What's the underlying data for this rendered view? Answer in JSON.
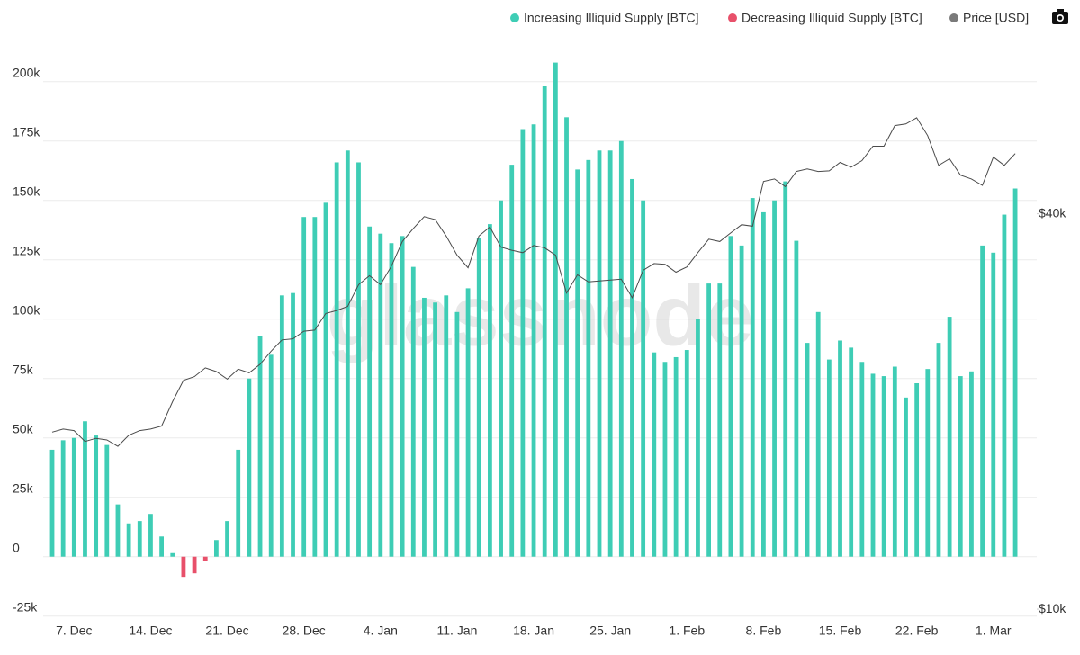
{
  "chart_data": {
    "type": "bar",
    "watermark": "glassnode",
    "categories": [
      null,
      null,
      "7. Dec",
      null,
      null,
      null,
      null,
      null,
      null,
      "14. Dec",
      null,
      null,
      null,
      null,
      null,
      null,
      "21. Dec",
      null,
      null,
      null,
      null,
      null,
      null,
      "28. Dec",
      null,
      null,
      null,
      null,
      null,
      null,
      "4. Jan",
      null,
      null,
      null,
      null,
      null,
      null,
      "11. Jan",
      null,
      null,
      null,
      null,
      null,
      null,
      "18. Jan",
      null,
      null,
      null,
      null,
      null,
      null,
      "25. Jan",
      null,
      null,
      null,
      null,
      null,
      null,
      "1. Feb",
      null,
      null,
      null,
      null,
      null,
      null,
      "8. Feb",
      null,
      null,
      null,
      null,
      null,
      null,
      "15. Feb",
      null,
      null,
      null,
      null,
      null,
      null,
      "22. Feb",
      null,
      null,
      null,
      null,
      null,
      null,
      "1. Mar",
      null,
      null
    ],
    "series": [
      {
        "name": "Increasing Illiquid Supply [BTC]",
        "color": "#3ecdb5",
        "values": [
          45000,
          49000,
          50000,
          57000,
          51000,
          47000,
          22000,
          14000,
          15000,
          18000,
          8500,
          1500,
          null,
          null,
          null,
          7000,
          15000,
          45000,
          75000,
          93000,
          85000,
          110000,
          111000,
          143000,
          143000,
          149000,
          166000,
          171000,
          166000,
          139000,
          136000,
          132000,
          135000,
          122000,
          109000,
          107000,
          110000,
          103000,
          113000,
          134000,
          140000,
          150000,
          165000,
          180000,
          182000,
          198000,
          208000,
          185000,
          163000,
          167000,
          171000,
          171000,
          175000,
          159000,
          150000,
          86000,
          82000,
          84000,
          87000,
          100000,
          115000,
          115000,
          135000,
          131000,
          151000,
          145000,
          150000,
          158000,
          133000,
          90000,
          103000,
          83000,
          91000,
          88000,
          82000,
          77000,
          76000,
          80000,
          67000,
          73000,
          79000,
          90000,
          101000,
          76000,
          78000,
          131000,
          128000,
          144000,
          155000
        ]
      },
      {
        "name": "Decreasing Illiquid Supply [BTC]",
        "color": "#e8506a",
        "values": [
          null,
          null,
          null,
          null,
          null,
          null,
          null,
          null,
          null,
          null,
          null,
          null,
          -8500,
          -7000,
          -2000,
          null,
          null,
          null,
          null,
          null,
          null,
          null,
          null,
          null,
          null,
          null,
          null,
          null,
          null,
          null,
          null,
          null,
          null,
          null,
          null,
          null,
          null,
          null,
          null,
          null,
          null,
          null,
          null,
          null,
          null,
          null,
          null,
          null,
          null,
          null,
          null,
          null,
          null,
          null,
          null,
          null,
          null,
          null,
          null,
          null,
          null,
          null,
          null,
          null,
          null,
          null,
          null,
          null,
          null,
          null,
          null,
          null,
          null,
          null,
          null,
          null,
          null,
          null,
          null,
          null,
          null,
          null,
          null,
          null,
          null,
          null,
          null,
          null,
          null
        ]
      },
      {
        "name": "Price [USD]",
        "color": "#7a7a7a",
        "line_color": "#4a4a4a",
        "type": "line",
        "axis": "y2",
        "values": [
          18600,
          18800,
          18700,
          18000,
          18200,
          18100,
          17700,
          18400,
          18700,
          18800,
          19000,
          20700,
          22300,
          22600,
          23300,
          23000,
          22400,
          23200,
          22900,
          23600,
          24700,
          25700,
          25800,
          26500,
          26600,
          28200,
          28500,
          28900,
          31200,
          32200,
          31200,
          33300,
          36300,
          38000,
          39600,
          39200,
          37000,
          34600,
          33100,
          37000,
          38200,
          35600,
          35200,
          34900,
          35800,
          35500,
          34600,
          30300,
          32300,
          31500,
          31600,
          31700,
          31800,
          29800,
          32800,
          33600,
          33500,
          32600,
          33200,
          34900,
          36600,
          36300,
          37400,
          38500,
          38300,
          44800,
          45200,
          44000,
          46400,
          46800,
          46400,
          46500,
          47900,
          47100,
          48200,
          50700,
          50700,
          54500,
          54800,
          56000,
          52600,
          47400,
          48500,
          45800,
          45200,
          44200,
          48800,
          47400,
          49400
        ]
      }
    ],
    "ylim": [
      -27000,
      223000
    ],
    "yticks": [
      {
        "value": -25000,
        "label": "-25k"
      },
      0,
      {
        "value": 25000,
        "label": "25k"
      },
      {
        "value": 50000,
        "label": "50k"
      },
      {
        "value": 75000,
        "label": "75k"
      },
      {
        "value": 100000,
        "label": "100k"
      },
      {
        "value": 125000,
        "label": "125k"
      },
      {
        "value": 150000,
        "label": "150k"
      },
      {
        "value": 175000,
        "label": "175k"
      },
      {
        "value": 200000,
        "label": "200k"
      }
    ],
    "y2lim": [
      9600,
      77000
    ],
    "y2scale": "log",
    "y2ticks": [
      {
        "value": 10000,
        "label": "$10k"
      },
      {
        "value": 40000,
        "label": "$40k"
      }
    ],
    "grid": true
  }
}
